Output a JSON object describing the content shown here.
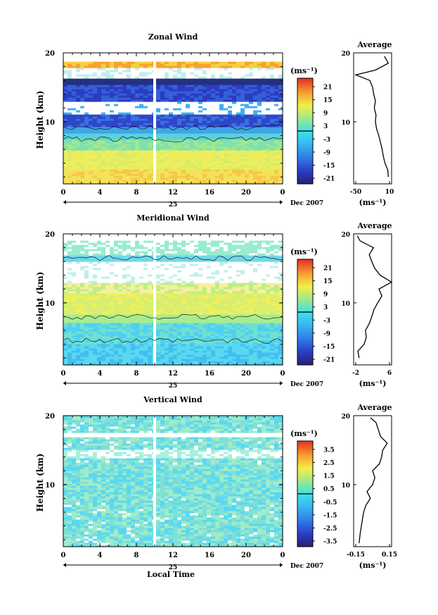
{
  "chart_data": [
    {
      "type": "heatmap",
      "title": "Zonal Wind",
      "xlabel": "",
      "ylabel": "Height (km)",
      "y_ticks": [
        "20",
        "10"
      ],
      "x_ticks": [
        "0",
        "4",
        "8",
        "12",
        "16",
        "20",
        "0"
      ],
      "date_marker": "25",
      "date_label": "Dec 2007",
      "xlim": [
        0,
        24
      ],
      "ylim": [
        1,
        20
      ],
      "colorbar": {
        "unit": "(ms⁻¹)",
        "ticks": [
          "21",
          "15",
          "9",
          "3",
          "-3",
          "-9",
          "-15",
          "-21"
        ],
        "values": [
          21,
          15,
          9,
          3,
          -3,
          -9,
          -15,
          -21
        ]
      },
      "profile": {
        "title": "Average",
        "unit": "(ms⁻¹)",
        "x_ticks": [
          "-50",
          "10"
        ],
        "xlim": [
          -50,
          10
        ],
        "y_ticks": [
          "20",
          "10"
        ],
        "heights": [
          2,
          3,
          4,
          5,
          6,
          7,
          8,
          9,
          10,
          11,
          12,
          13,
          14,
          15,
          16,
          16.8,
          17.5,
          18.5,
          19.5
        ],
        "values": [
          8,
          7,
          2,
          -1,
          -3,
          -6,
          -9,
          -13,
          -15,
          -14,
          -17,
          -15,
          -18,
          -20,
          -25,
          -50,
          -15,
          8,
          1
        ]
      }
    },
    {
      "type": "heatmap",
      "title": "Meridional Wind",
      "xlabel": "",
      "ylabel": "Height (km)",
      "y_ticks": [
        "20",
        "10"
      ],
      "x_ticks": [
        "0",
        "4",
        "8",
        "12",
        "16",
        "20",
        "0"
      ],
      "date_marker": "25",
      "date_label": "Dec 2007",
      "xlim": [
        0,
        24
      ],
      "ylim": [
        1,
        20
      ],
      "colorbar": {
        "unit": "(ms⁻¹)",
        "ticks": [
          "21",
          "15",
          "9",
          "3",
          "-3",
          "-9",
          "-15",
          "-21"
        ],
        "values": [
          21,
          15,
          9,
          3,
          -3,
          -9,
          -15,
          -21
        ]
      },
      "profile": {
        "title": "Average",
        "unit": "(ms⁻¹)",
        "x_ticks": [
          "-2",
          "6"
        ],
        "xlim": [
          -2,
          6
        ],
        "y_ticks": [
          "20",
          "10"
        ],
        "heights": [
          2,
          3,
          4,
          5,
          6,
          7,
          8,
          9,
          10,
          11,
          12,
          13,
          14,
          15,
          16,
          17,
          18,
          19,
          19.7
        ],
        "values": [
          -1.2,
          -1.5,
          0,
          0.5,
          0.3,
          1.2,
          1.8,
          2.3,
          3.2,
          4.2,
          3.5,
          6.5,
          3.8,
          2.5,
          1.8,
          1.2,
          2.2,
          -1.0,
          -1.6
        ]
      }
    },
    {
      "type": "heatmap",
      "title": "Vertical Wind",
      "xlabel": "Local Time",
      "ylabel": "Height (km)",
      "y_ticks": [
        "20",
        "10"
      ],
      "x_ticks": [
        "0",
        "4",
        "8",
        "12",
        "16",
        "20",
        "0"
      ],
      "date_marker": "25",
      "date_label": "Dec 2007",
      "xlim": [
        0,
        24
      ],
      "ylim": [
        1,
        20
      ],
      "colorbar": {
        "unit": "(ms⁻¹)",
        "ticks": [
          "3.5",
          "2.5",
          "1.5",
          "0.5",
          "-0.5",
          "-1.5",
          "-2.5",
          "-3.5"
        ],
        "values": [
          3.5,
          2.5,
          1.5,
          0.5,
          -0.5,
          -1.5,
          -2.5,
          -3.5
        ]
      },
      "profile": {
        "title": "Average",
        "unit": "(ms⁻¹)",
        "x_ticks": [
          "-0.15",
          "0.15"
        ],
        "xlim": [
          -0.15,
          0.15
        ],
        "y_ticks": [
          "20",
          "10"
        ],
        "heights": [
          1.5,
          3,
          4,
          5,
          6,
          7,
          8,
          9,
          10,
          11,
          12,
          13,
          14,
          15,
          16,
          17,
          18,
          19,
          19.7
        ],
        "values": [
          -0.12,
          -0.11,
          -0.1,
          -0.09,
          -0.08,
          -0.06,
          -0.02,
          -0.05,
          0.0,
          0.02,
          0.0,
          0.06,
          0.08,
          0.09,
          0.13,
          0.07,
          0.05,
          0.03,
          -0.02
        ]
      }
    }
  ]
}
